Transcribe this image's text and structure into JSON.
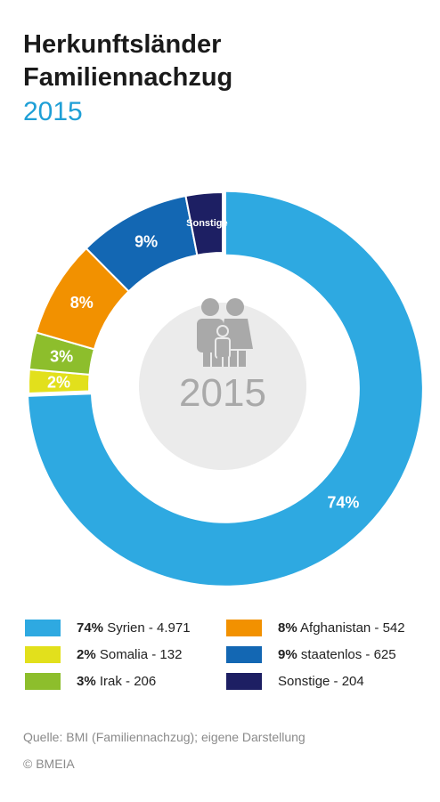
{
  "title": {
    "line1": "Herkunftsländer",
    "line2": "Familiennachzug"
  },
  "year": "2015",
  "center_label": "2015",
  "chart_data": {
    "type": "pie",
    "variant": "donut",
    "categories": [
      "Syrien",
      "Somalia",
      "Irak",
      "Afghanistan",
      "staatenlos",
      "Sonstige"
    ],
    "values": [
      4971,
      132,
      206,
      542,
      625,
      204
    ],
    "labels": [
      "74%",
      "2%",
      "3%",
      "8%",
      "9%",
      "Sonstige"
    ],
    "colors": [
      "#2ea9e1",
      "#e2e01c",
      "#8dbe2c",
      "#f29100",
      "#1367b3",
      "#1d1f63"
    ],
    "highlighted_category": "Syrien"
  },
  "legend": [
    {
      "pct": "74%",
      "text": "Syrien - 4.971",
      "color": "#2ea9e1"
    },
    {
      "pct": "2%",
      "text": "Somalia - 132",
      "color": "#e2e01c"
    },
    {
      "pct": "3%",
      "text": "Irak - 206",
      "color": "#8dbe2c"
    },
    {
      "pct": "8%",
      "text": "Afghanistan - 542",
      "color": "#f29100"
    },
    {
      "pct": "9%",
      "text": "staatenlos - 625",
      "color": "#1367b3"
    },
    {
      "pct": "",
      "text": "Sonstige - 204",
      "color": "#1d1f63"
    }
  ],
  "source": "Quelle: BMI (Familiennachzug); eigene Darstellung",
  "copyright": "© BMEIA"
}
